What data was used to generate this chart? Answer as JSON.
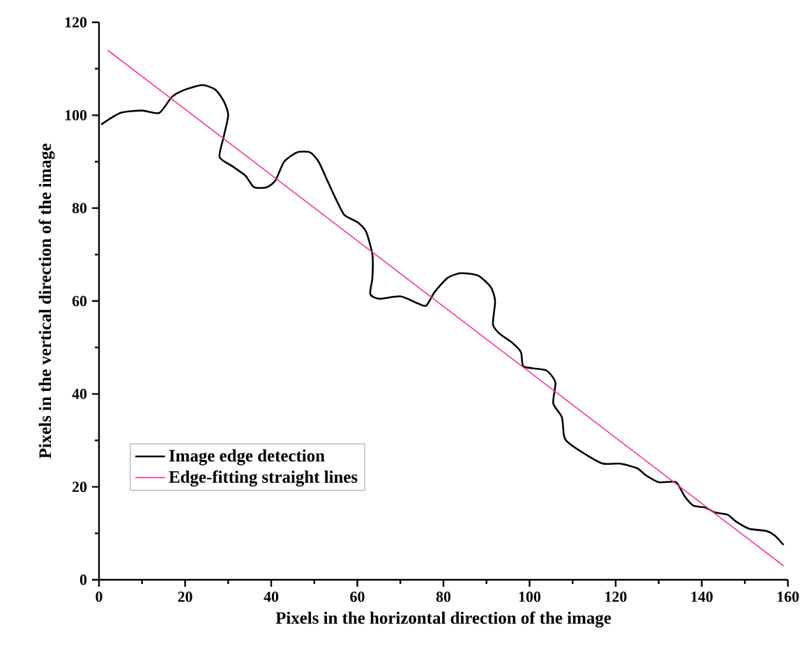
{
  "chart_data": {
    "type": "line",
    "xlabel": "Pixels in the horizontal direction of the image",
    "ylabel": "Pixels in the vertical direction of the image",
    "xlim": [
      0,
      160
    ],
    "ylim": [
      0,
      120
    ],
    "xticks": [
      0,
      20,
      40,
      60,
      80,
      100,
      120,
      140,
      160
    ],
    "yticks": [
      0,
      20,
      40,
      60,
      80,
      100,
      120
    ],
    "legend": "bottom left",
    "grid": false,
    "series": [
      {
        "name": "Image edge detection",
        "color": "#000000",
        "x": [
          0.5,
          5,
          10,
          14,
          17,
          20,
          24,
          27,
          29,
          30,
          29,
          28,
          31,
          34,
          36,
          39,
          41,
          43,
          46,
          49,
          51,
          53,
          55,
          57,
          60,
          62,
          63.5,
          63.5,
          63,
          65,
          70,
          74,
          76,
          78,
          81,
          84,
          88,
          91,
          92,
          91.5,
          93,
          96,
          98,
          98.5,
          101,
          104,
          106,
          105.5,
          107.5,
          108,
          109,
          113,
          117,
          121,
          125,
          127,
          130,
          134,
          136,
          138,
          141,
          143,
          146,
          148,
          151,
          155,
          157,
          159
        ],
        "values": [
          98,
          100.5,
          101,
          100.5,
          104,
          105.5,
          106.5,
          105.5,
          103,
          100,
          95.5,
          91,
          89,
          87,
          84.5,
          84.5,
          86,
          90,
          92,
          92,
          90,
          86,
          82,
          78.5,
          77,
          75,
          70,
          65,
          61.5,
          60.5,
          61,
          59.5,
          59,
          62,
          65,
          66,
          65.5,
          63,
          60,
          55,
          53,
          51,
          49,
          46,
          45.5,
          45,
          42.5,
          38,
          35,
          31,
          29.5,
          27,
          25,
          25,
          24,
          22.5,
          21,
          21,
          18,
          16,
          15.5,
          14.5,
          14,
          12.5,
          11,
          10.5,
          9.5,
          7.5
        ]
      },
      {
        "name": "Edge-fitting straight lines",
        "color": "#ff3399",
        "x": [
          2,
          159
        ],
        "values": [
          114,
          3
        ]
      }
    ]
  }
}
